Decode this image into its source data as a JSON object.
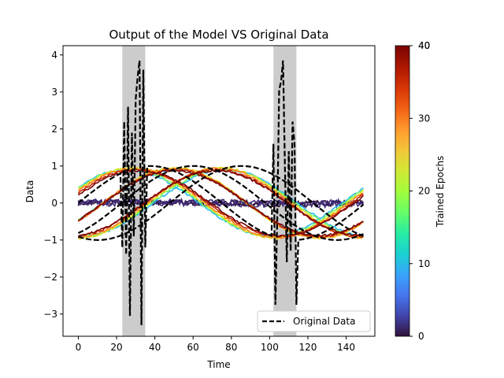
{
  "chart_data": {
    "type": "line",
    "title": "Output of the Model VS Original Data",
    "xlabel": "Time",
    "ylabel": "Data",
    "xlim": [
      -8,
      155
    ],
    "ylim": [
      -3.6,
      4.25
    ],
    "xticks": [
      0,
      20,
      40,
      60,
      80,
      100,
      120,
      140
    ],
    "yticks": [
      -3,
      -2,
      -1,
      0,
      1,
      2,
      3,
      4
    ],
    "shaded_regions": [
      [
        23,
        35
      ],
      [
        102,
        114
      ]
    ],
    "legend": {
      "placement": "lower-right",
      "entries": [
        "Original Data"
      ]
    },
    "colorbar": {
      "label": "Trained Epochs",
      "range": [
        0,
        40
      ],
      "ticks": [
        0,
        10,
        20,
        30,
        40
      ],
      "top_label_duplicate": "40",
      "colormap": "turbo"
    },
    "original_data": {
      "name": "Original Data",
      "style": "dashed",
      "color": "#000000",
      "note_segments": "three overlapping phase-shifted sine curves with spikes in shaded windows",
      "spike_windows": [
        [
          23,
          35
        ],
        [
          102,
          114
        ]
      ],
      "spike_values_window1": [
        -1.2,
        2.2,
        -1.4,
        2.6,
        -3.05,
        1.9,
        -0.9,
        2.8,
        3.4,
        3.85,
        -3.3,
        3.6,
        -1.2,
        2.0,
        -1.55
      ],
      "spike_values_window2": [
        1.6,
        -2.75,
        -0.4,
        3.05,
        3.3,
        3.85,
        1.0,
        -1.6,
        1.4,
        -1.3,
        2.2
      ]
    },
    "series": [
      {
        "epoch": 1,
        "color": "#30123b",
        "kind": "noise",
        "amplitude": 0.08
      },
      {
        "epoch": 3,
        "color": "#3e2a78",
        "kind": "noise",
        "amplitude": 0.1
      },
      {
        "epoch": 12,
        "color": "#28bbec",
        "kind": "sine",
        "amplitude": 0.9,
        "phases": [
          1.05,
          0.0,
          -1.1
        ]
      },
      {
        "epoch": 18,
        "color": "#7df65a",
        "kind": "sine",
        "amplitude": 0.92,
        "phases": [
          1.0,
          0.0,
          -1.05
        ]
      },
      {
        "epoch": 25,
        "color": "#e4e023",
        "kind": "sine",
        "amplitude": 0.95,
        "phases": [
          0.95,
          0.0,
          -1.0
        ]
      },
      {
        "epoch": 32,
        "color": "#fb8022",
        "kind": "sine",
        "amplitude": 0.93,
        "phases": [
          0.9,
          0.0,
          -0.95
        ]
      },
      {
        "epoch": 37,
        "color": "#c42503",
        "kind": "sine",
        "amplitude": 0.9,
        "phases": [
          0.85,
          0.0,
          -0.9
        ]
      },
      {
        "epoch": 40,
        "color": "#7a0403",
        "kind": "sine",
        "amplitude": 0.88,
        "phases": [
          0.8,
          0.0,
          -0.9
        ]
      }
    ]
  }
}
